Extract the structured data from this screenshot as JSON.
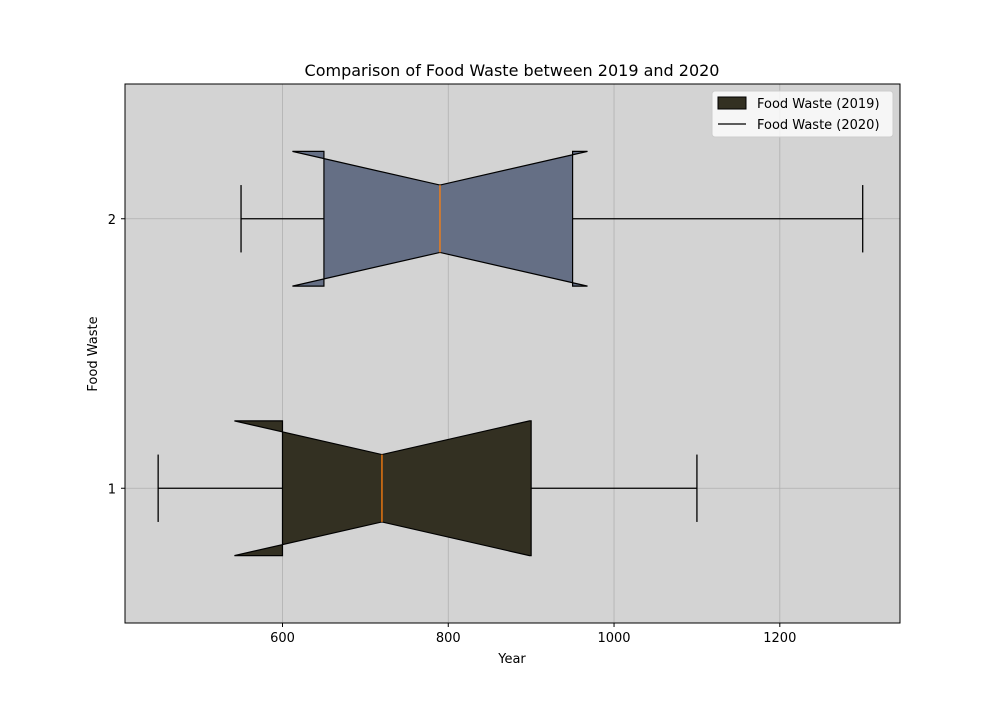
{
  "chart_data": {
    "type": "boxplot",
    "orientation": "horizontal",
    "notched": true,
    "title": "Comparison of Food Waste between 2019 and 2020",
    "xlabel": "Year",
    "ylabel": "Food Waste",
    "xlim": [
      410,
      1345
    ],
    "ylim": [
      0.5,
      2.5
    ],
    "x_ticks": [
      600,
      800,
      1000,
      1200
    ],
    "y_ticks": [
      1,
      2
    ],
    "grid": true,
    "background_color": "#d3d3d3",
    "legend": {
      "placement": "top-right",
      "entries": [
        {
          "label": "Food Waste (2019)",
          "marker": "patch",
          "color": "#333022"
        },
        {
          "label": "Food Waste (2020)",
          "marker": "line",
          "color": "#000000"
        }
      ]
    },
    "series": [
      {
        "position": 1,
        "whisker_low": 450,
        "q1": 600,
        "median": 720,
        "q3": 900,
        "whisker_high": 1100,
        "notch_low": 542,
        "notch_high": 898,
        "color": "#333022",
        "median_color": "#ff7f0e"
      },
      {
        "position": 2,
        "whisker_low": 550,
        "q1": 650,
        "median": 790,
        "q3": 950,
        "whisker_high": 1300,
        "notch_low": 612,
        "notch_high": 968,
        "color": "#656f85",
        "median_color": "#ff7f0e"
      }
    ]
  }
}
